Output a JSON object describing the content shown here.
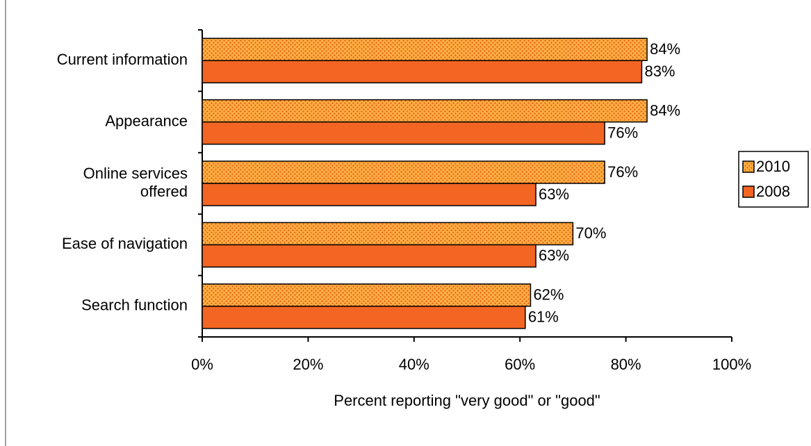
{
  "chart_data": {
    "type": "hbar",
    "x_label": "Percent reporting \"very good\" or \"good\"",
    "categories": [
      "Current information",
      "Appearance",
      "Online services\noffered",
      "Ease of navigation",
      "Search function"
    ],
    "series": [
      {
        "name": "2010",
        "color": "#fbb040",
        "pattern": "dots",
        "values": [
          84,
          84,
          76,
          70,
          62
        ],
        "value_labels": [
          "84%",
          "84%",
          "76%",
          "70%",
          "62%"
        ]
      },
      {
        "name": "2008",
        "color": "#f26522",
        "values": [
          83,
          76,
          63,
          63,
          61
        ],
        "value_labels": [
          "83%",
          "76%",
          "63%",
          "63%",
          "61%"
        ]
      }
    ],
    "xlim": [
      0,
      100
    ],
    "xticks": [
      {
        "value": 0,
        "label": "0%"
      },
      {
        "value": 20,
        "label": "20%"
      },
      {
        "value": 40,
        "label": "40%"
      },
      {
        "value": 60,
        "label": "60%"
      },
      {
        "value": 80,
        "label": "80%"
      },
      {
        "value": 100,
        "label": "100%"
      }
    ],
    "legend": "right"
  }
}
